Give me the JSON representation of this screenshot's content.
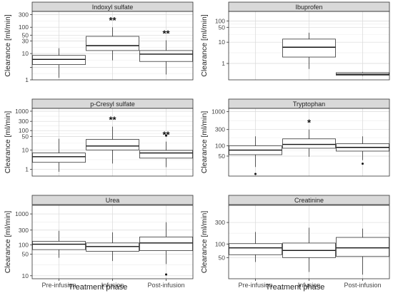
{
  "figure": {
    "ylabel": "Clearance [ml/min]",
    "xlabel": "Treatment phase",
    "categories": [
      "Pre-infusion",
      "Infusion",
      "Post-infusion"
    ],
    "significance_marker": "**",
    "colors": {
      "strip": "#d9d9d9",
      "strip_border": "#333333",
      "box_fill": "#ffffff",
      "box_stroke": "#333333",
      "grid_major": "#d9d9d9",
      "grid_minor": "#ececec",
      "panel_border": "#333333"
    }
  },
  "chart_data": [
    {
      "type": "box",
      "title": "Indoxyl sulfate",
      "scale": "log10",
      "ylim": [
        1,
        400
      ],
      "ticks": [
        1,
        3,
        10,
        30,
        50,
        100,
        300
      ],
      "tick_labels": [
        "1",
        "",
        "10",
        "30",
        "50",
        "100",
        "300"
      ],
      "boxes": [
        {
          "category": "Pre-infusion",
          "min": 1.2,
          "q1": 3.8,
          "median": 6.0,
          "q3": 8.5,
          "max": 16,
          "outliers": [],
          "sig": ""
        },
        {
          "category": "Infusion",
          "min": 5.5,
          "q1": 13,
          "median": 20,
          "q3": 45,
          "max": 100,
          "outliers": [],
          "sig": "**"
        },
        {
          "category": "Post-infusion",
          "min": 1.6,
          "q1": 5.0,
          "median": 9.5,
          "q3": 13,
          "max": 32,
          "outliers": [],
          "sig": "**"
        }
      ]
    },
    {
      "type": "box",
      "title": "Ibuprofen",
      "scale": "log10",
      "ylim": [
        0.17,
        280
      ],
      "ticks": [
        1,
        10,
        50,
        100
      ],
      "tick_labels": [
        "1",
        "10",
        "50",
        "100"
      ],
      "boxes": [
        {
          "category": "Pre-infusion",
          "empty": true
        },
        {
          "category": "Infusion",
          "min": 0.55,
          "q1": 2.0,
          "median": 5.8,
          "q3": 14,
          "max": 28,
          "outliers": [],
          "sig": ""
        },
        {
          "category": "Post-infusion",
          "min": 0.26,
          "q1": 0.28,
          "median": 0.31,
          "q3": 0.37,
          "max": 0.4,
          "outliers": [],
          "sig": ""
        }
      ]
    },
    {
      "type": "box",
      "title": "p-Cresyl sulfate",
      "scale": "log10",
      "ylim": [
        0.45,
        1400
      ],
      "ticks": [
        1,
        10,
        50,
        100,
        300,
        1000
      ],
      "tick_labels": [
        "1",
        "10",
        "50",
        "100",
        "300",
        "1000"
      ],
      "boxes": [
        {
          "category": "Pre-infusion",
          "min": 0.75,
          "q1": 2.3,
          "median": 4.5,
          "q3": 7.0,
          "max": 38,
          "outliers": [],
          "sig": ""
        },
        {
          "category": "Infusion",
          "min": 2.0,
          "q1": 10,
          "median": 16,
          "q3": 35,
          "max": 160,
          "outliers": [],
          "sig": "**"
        },
        {
          "category": "Post-infusion",
          "min": 1.3,
          "q1": 3.8,
          "median": 7.0,
          "q3": 9.5,
          "max": 27,
          "outliers": [
            55
          ],
          "sig": "**"
        }
      ]
    },
    {
      "type": "box",
      "title": "Tryptophan",
      "scale": "log10",
      "ylim": [
        13,
        1250
      ],
      "ticks": [
        50,
        100,
        300,
        1000
      ],
      "tick_labels": [
        "50",
        "100",
        "300",
        "1000"
      ],
      "boxes": [
        {
          "category": "Pre-infusion",
          "min": 24,
          "q1": 55,
          "median": 75,
          "q3": 100,
          "max": 190,
          "outliers": [
            15
          ],
          "sig": ""
        },
        {
          "category": "Infusion",
          "min": 48,
          "q1": 85,
          "median": 110,
          "q3": 160,
          "max": 300,
          "outliers": [],
          "sig": "*"
        },
        {
          "category": "Post-infusion",
          "min": 38,
          "q1": 70,
          "median": 90,
          "q3": 115,
          "max": 190,
          "outliers": [
            30
          ],
          "sig": ""
        }
      ]
    },
    {
      "type": "box",
      "title": "Urea",
      "scale": "log10",
      "ylim": [
        8,
        1900
      ],
      "ticks": [
        10,
        50,
        100,
        300,
        1000
      ],
      "tick_labels": [
        "10",
        "50",
        "100",
        "300",
        "1000"
      ],
      "boxes": [
        {
          "category": "Pre-infusion",
          "min": 38,
          "q1": 70,
          "median": 105,
          "q3": 130,
          "max": 285,
          "outliers": [],
          "sig": ""
        },
        {
          "category": "Infusion",
          "min": 30,
          "q1": 62,
          "median": 88,
          "q3": 115,
          "max": 255,
          "outliers": [],
          "sig": ""
        },
        {
          "category": "Post-infusion",
          "min": 24,
          "q1": 65,
          "median": 115,
          "q3": 180,
          "max": 540,
          "outliers": [
            11
          ],
          "sig": ""
        }
      ]
    },
    {
      "type": "box",
      "title": "Creatinine",
      "scale": "log10",
      "ylim": [
        17,
        720
      ],
      "ticks": [
        50,
        100,
        300
      ],
      "tick_labels": [
        "50",
        "100",
        "300"
      ],
      "boxes": [
        {
          "category": "Pre-infusion",
          "min": 40,
          "q1": 58,
          "median": 82,
          "q3": 102,
          "max": 185,
          "outliers": [],
          "sig": ""
        },
        {
          "category": "Infusion",
          "min": 24,
          "q1": 50,
          "median": 72,
          "q3": 105,
          "max": 230,
          "outliers": [],
          "sig": ""
        },
        {
          "category": "Post-infusion",
          "min": 21,
          "q1": 53,
          "median": 82,
          "q3": 140,
          "max": 220,
          "outliers": [],
          "sig": ""
        }
      ]
    }
  ]
}
